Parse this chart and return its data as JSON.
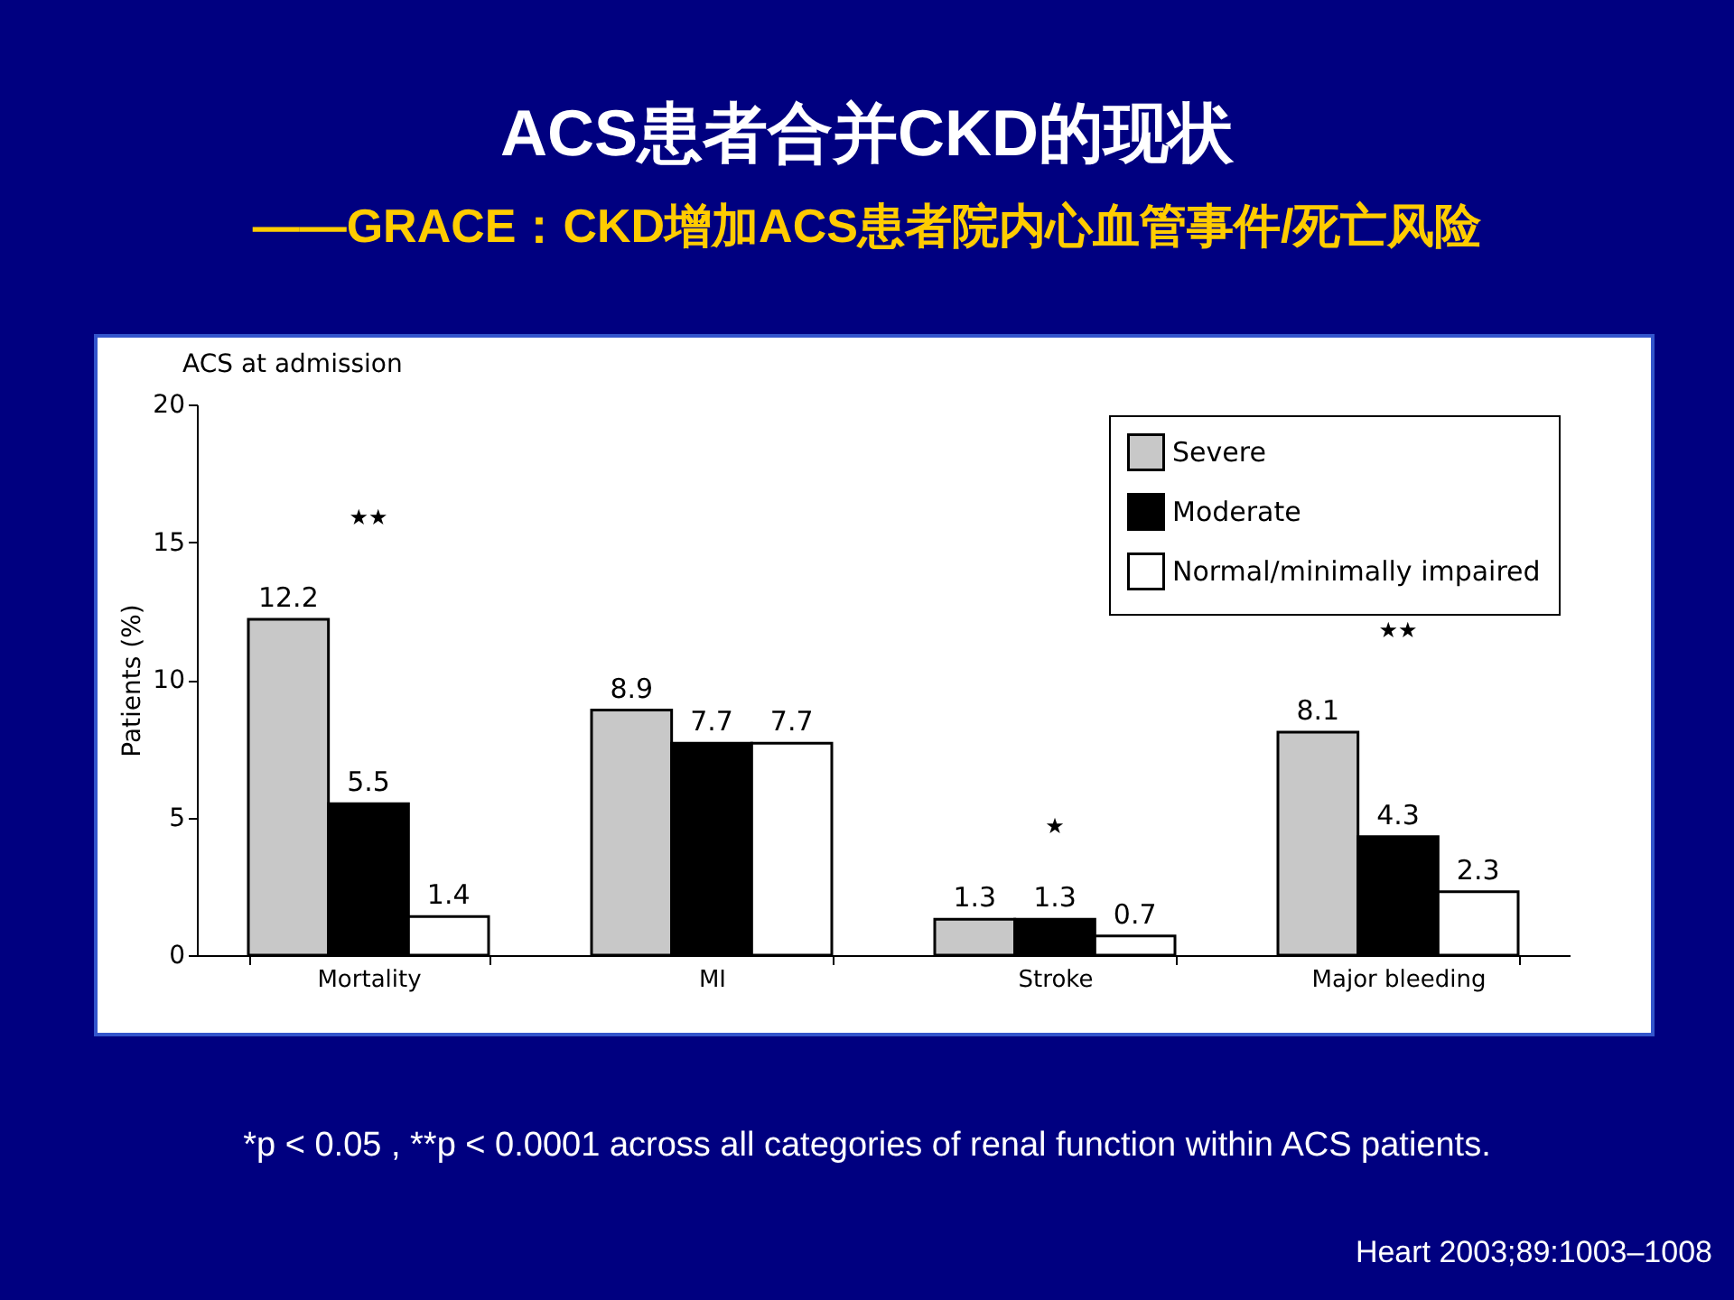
{
  "chart_data": {
    "type": "bar",
    "title": "ACS患者合并CKD的现状",
    "subtitle": "——GRACE：CKD增加ACS患者院内心血管事件/死亡风险",
    "ylabel": "Patients (%)",
    "categories": [
      "Mortality",
      "MI",
      "Stroke",
      "Major bleeding"
    ],
    "series": [
      {
        "name": "Severe",
        "color": "#c8c8c8",
        "values": [
          12.2,
          8.9,
          1.3,
          8.1
        ]
      },
      {
        "name": "Moderate",
        "color": "#000000",
        "values": [
          5.5,
          7.7,
          1.3,
          4.3
        ]
      },
      {
        "name": "Normal/minimally impaired",
        "color": "#ffffff",
        "values": [
          1.4,
          7.7,
          0.7,
          2.3
        ]
      }
    ],
    "ylim": [
      0,
      20
    ],
    "yticks": [
      0,
      5,
      10,
      15,
      20
    ],
    "grid": false,
    "legend": "top right",
    "data_labels": true,
    "annotations": [
      "ACS at admission",
      "★★",
      "★",
      "★★",
      "*p < 0.05 ,  **p < 0.0001 across all categories of renal function within ACS patients.",
      "Heart 2003;89:1003–1008"
    ]
  }
}
